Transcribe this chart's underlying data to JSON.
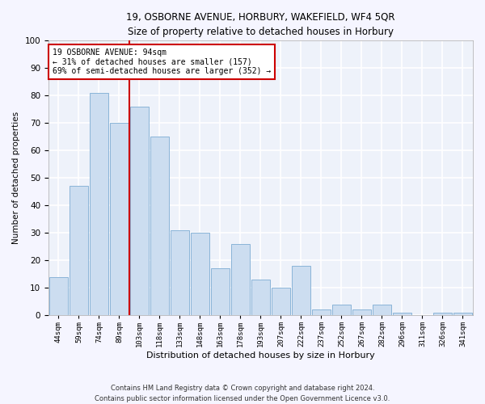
{
  "title": "19, OSBORNE AVENUE, HORBURY, WAKEFIELD, WF4 5QR",
  "subtitle": "Size of property relative to detached houses in Horbury",
  "xlabel": "Distribution of detached houses by size in Horbury",
  "ylabel": "Number of detached properties",
  "bar_color": "#ccddf0",
  "bar_edge_color": "#8ab4d8",
  "background_color": "#eef2fa",
  "grid_color": "#ffffff",
  "fig_background": "#f5f5ff",
  "categories": [
    "44sqm",
    "59sqm",
    "74sqm",
    "89sqm",
    "103sqm",
    "118sqm",
    "133sqm",
    "148sqm",
    "163sqm",
    "178sqm",
    "193sqm",
    "207sqm",
    "222sqm",
    "237sqm",
    "252sqm",
    "267sqm",
    "282sqm",
    "296sqm",
    "311sqm",
    "326sqm",
    "341sqm"
  ],
  "values": [
    14,
    47,
    81,
    70,
    76,
    65,
    31,
    30,
    17,
    26,
    13,
    10,
    18,
    2,
    4,
    2,
    4,
    1,
    0,
    1,
    1
  ],
  "ylim": [
    0,
    100
  ],
  "yticks": [
    0,
    10,
    20,
    30,
    40,
    50,
    60,
    70,
    80,
    90,
    100
  ],
  "vline_x": 3.5,
  "vline_color": "#cc0000",
  "annotation_text": "19 OSBORNE AVENUE: 94sqm\n← 31% of detached houses are smaller (157)\n69% of semi-detached houses are larger (352) →",
  "annotation_box_color": "#ffffff",
  "annotation_box_edge": "#cc0000",
  "footer1": "Contains HM Land Registry data © Crown copyright and database right 2024.",
  "footer2": "Contains public sector information licensed under the Open Government Licence v3.0."
}
